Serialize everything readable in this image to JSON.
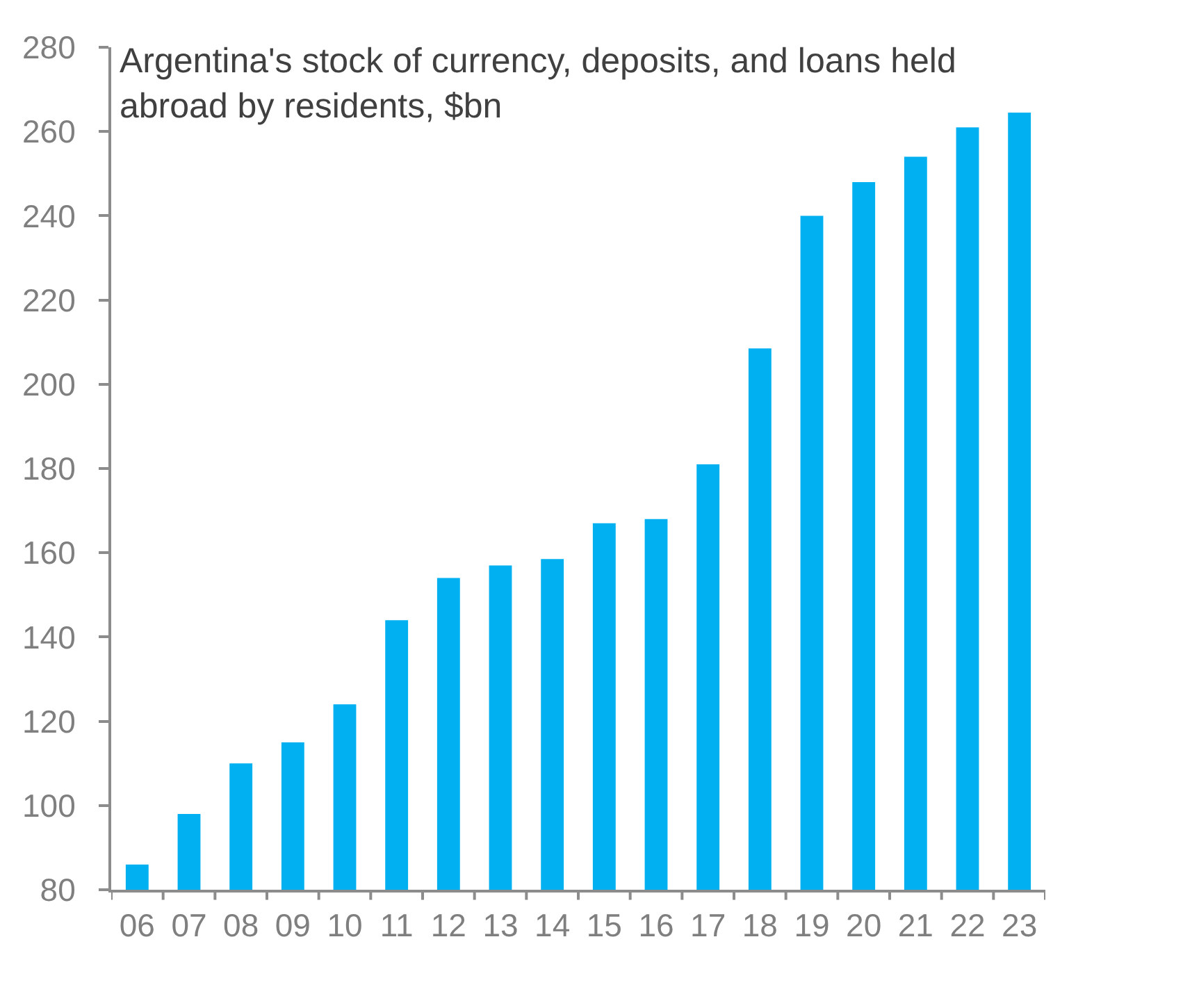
{
  "chart_data": {
    "type": "bar",
    "title": "Argentina's stock of currency, deposits, and loans held\nabroad by residents, $bn",
    "categories": [
      "06",
      "07",
      "08",
      "09",
      "10",
      "11",
      "12",
      "13",
      "14",
      "15",
      "16",
      "17",
      "18",
      "19",
      "20",
      "21",
      "22",
      "23"
    ],
    "values": [
      86,
      98,
      110,
      115,
      124,
      144,
      154,
      157,
      158.5,
      167,
      168,
      181,
      208.5,
      240,
      248,
      254,
      261,
      264.5
    ],
    "color": "#00b0f0",
    "ylim": [
      80,
      280
    ],
    "yticks": [
      80,
      100,
      120,
      140,
      160,
      180,
      200,
      220,
      240,
      260,
      280
    ]
  }
}
